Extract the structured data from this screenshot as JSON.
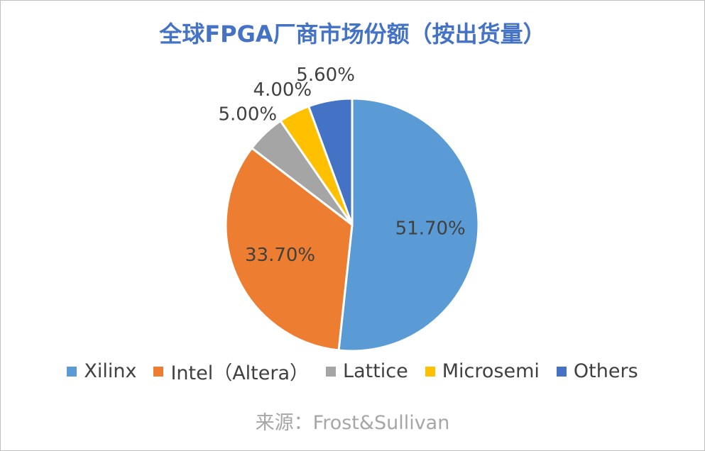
{
  "chart_data": {
    "type": "pie",
    "title": "全球FPGA厂商市场份额（按出货量）",
    "categories": [
      "Xilinx",
      "Intel（Altera）",
      "Lattice",
      "Microsemi",
      "Others"
    ],
    "values": [
      51.7,
      33.7,
      5,
      4,
      5.6
    ],
    "value_labels": [
      "51.70%",
      "33.70%",
      "5.00%",
      "4.00%",
      "5.60%"
    ],
    "colors": [
      "#5b9bd5",
      "#ed7d31",
      "#a5a5a5",
      "#ffc000",
      "#4472c4"
    ],
    "source": "来源：Frost&Sullivan"
  }
}
